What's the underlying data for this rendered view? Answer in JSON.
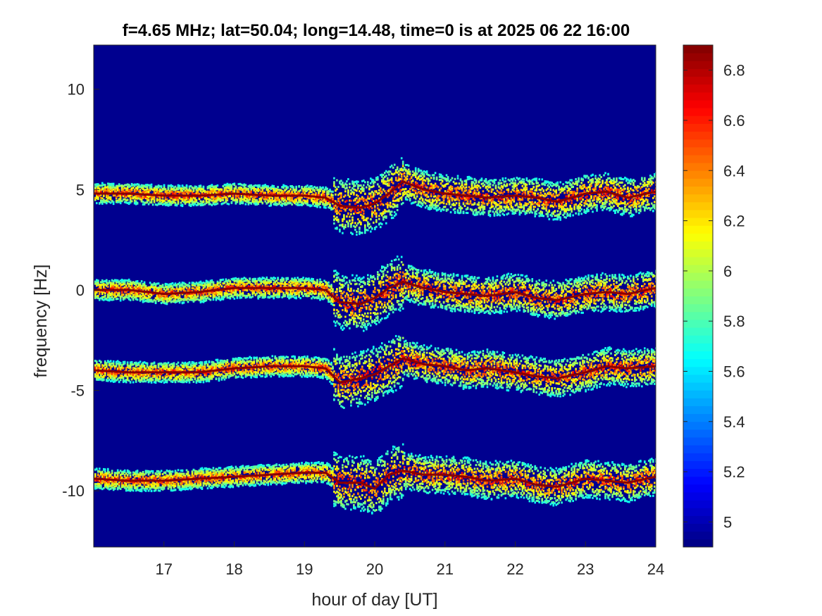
{
  "chart_data": {
    "type": "heatmap",
    "title": "f=4.65 MHz;  lat=50.04; long=14.48, time=0 is at 2025 06 22 16:00",
    "xlabel": "hour of day [UT]",
    "ylabel": "frequency [Hz]",
    "xlim": [
      16,
      24
    ],
    "ylim": [
      -12.8,
      12.2
    ],
    "xticks": [
      17,
      18,
      19,
      20,
      21,
      22,
      23,
      24
    ],
    "xtick_labels": [
      "17",
      "18",
      "19",
      "20",
      "21",
      "22",
      "23",
      "24"
    ],
    "yticks": [
      10,
      5,
      0,
      -5,
      -10
    ],
    "ytick_labels": [
      "10",
      "5",
      "0",
      "-5",
      "-10"
    ],
    "colorbar": {
      "colormap": "jet",
      "range": [
        4.9,
        6.9
      ],
      "ticks": [
        5,
        5.2,
        5.4,
        5.6,
        5.8,
        6,
        6.2,
        6.4,
        6.6,
        6.8
      ],
      "tick_labels": [
        "5",
        "5.2",
        "5.4",
        "5.6",
        "5.8",
        "6",
        "6.2",
        "6.4",
        "6.6",
        "6.8"
      ]
    },
    "background_color": "#00008f",
    "grid": false,
    "series": [
      {
        "x": [
          16.0,
          16.5,
          17.0,
          17.5,
          18.0,
          18.5,
          19.0,
          19.3,
          19.5,
          19.8,
          20.0,
          20.2,
          20.4,
          20.7,
          21.0,
          21.3,
          21.6,
          22.0,
          22.3,
          22.6,
          23.0,
          23.3,
          23.6,
          24.0
        ],
        "y": [
          4.8,
          4.8,
          4.7,
          4.7,
          4.8,
          4.7,
          4.7,
          4.6,
          4.2,
          4.1,
          4.3,
          4.8,
          5.4,
          5.0,
          4.8,
          4.7,
          4.6,
          4.7,
          4.6,
          4.4,
          4.8,
          4.9,
          4.6,
          4.9
        ]
      },
      {
        "x": [
          16.0,
          16.5,
          17.0,
          17.5,
          18.0,
          18.5,
          19.0,
          19.3,
          19.5,
          19.8,
          20.0,
          20.2,
          20.4,
          20.7,
          21.0,
          21.3,
          21.6,
          22.0,
          22.3,
          22.6,
          23.0,
          23.3,
          23.6,
          24.0
        ],
        "y": [
          0.0,
          0.0,
          -0.2,
          -0.1,
          0.1,
          0.1,
          0.1,
          0.0,
          -0.6,
          -0.7,
          -0.4,
          0.1,
          0.4,
          0.1,
          -0.1,
          -0.2,
          -0.3,
          -0.1,
          -0.4,
          -0.5,
          -0.2,
          -0.1,
          -0.2,
          0.1
        ]
      },
      {
        "x": [
          16.0,
          16.5,
          17.0,
          17.5,
          18.0,
          18.5,
          19.0,
          19.3,
          19.5,
          19.8,
          20.0,
          20.2,
          20.4,
          20.7,
          21.0,
          21.3,
          21.6,
          22.0,
          22.3,
          22.6,
          23.0,
          23.3,
          23.6,
          24.0
        ],
        "y": [
          -4.0,
          -4.1,
          -4.1,
          -4.1,
          -3.9,
          -3.8,
          -3.8,
          -3.9,
          -4.6,
          -4.4,
          -4.2,
          -3.8,
          -3.4,
          -3.7,
          -3.8,
          -4.0,
          -3.9,
          -4.1,
          -4.3,
          -4.4,
          -4.1,
          -3.8,
          -3.9,
          -3.8
        ]
      },
      {
        "x": [
          16.0,
          16.5,
          17.0,
          17.5,
          18.0,
          18.5,
          19.0,
          19.3,
          19.5,
          19.8,
          20.0,
          20.2,
          20.4,
          20.7,
          21.0,
          21.3,
          21.6,
          22.0,
          22.3,
          22.6,
          23.0,
          23.3,
          23.6,
          24.0
        ],
        "y": [
          -9.4,
          -9.5,
          -9.5,
          -9.4,
          -9.3,
          -9.2,
          -9.1,
          -9.1,
          -9.6,
          -9.6,
          -9.9,
          -9.2,
          -9.0,
          -9.2,
          -9.2,
          -9.3,
          -9.5,
          -9.4,
          -9.7,
          -9.8,
          -9.4,
          -9.5,
          -9.6,
          -9.3
        ]
      }
    ]
  }
}
